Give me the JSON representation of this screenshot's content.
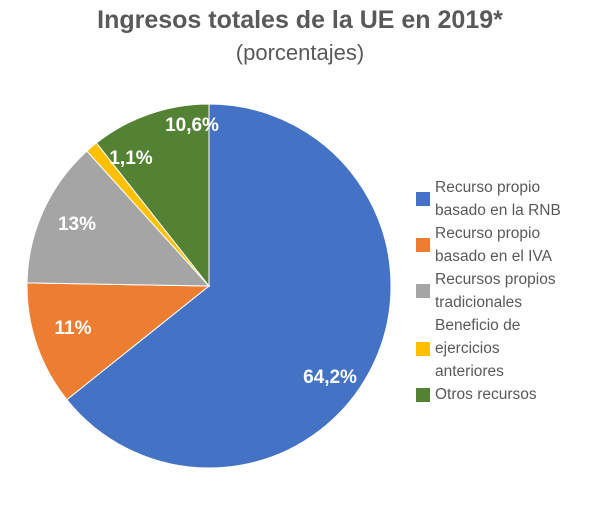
{
  "chart_data": {
    "type": "pie",
    "title": "Ingresos totales de la UE en 2019*",
    "subtitle": "(porcentajes)",
    "start": "12 o'clock, clockwise",
    "legend_position": "right",
    "slices": [
      {
        "name": "Recurso propio basado en la RNB",
        "value": 64.2,
        "label": "64,2%",
        "color": "#4472C4"
      },
      {
        "name": "Recurso propio basado en el IVA",
        "value": 11,
        "label": "11%",
        "color": "#ED7D31"
      },
      {
        "name": "Recursos propios tradicionales",
        "value": 13,
        "label": "13%",
        "color": "#A5A5A5"
      },
      {
        "name": "Beneficio de ejercicios anteriores",
        "value": 1.1,
        "label": "1,1%",
        "color": "#FFC000"
      },
      {
        "name": "Otros recursos",
        "value": 10.6,
        "label": "10,6%",
        "color": "#548235"
      }
    ],
    "legend": [
      [
        "Recurso propio",
        "basado en la RNB"
      ],
      [
        "Recurso propio",
        "basado en el IVA"
      ],
      [
        "Recursos propios",
        "tradicionales"
      ],
      [
        "Beneficio de",
        "ejercicios",
        "anteriores"
      ],
      [
        "Otros recursos"
      ]
    ]
  }
}
